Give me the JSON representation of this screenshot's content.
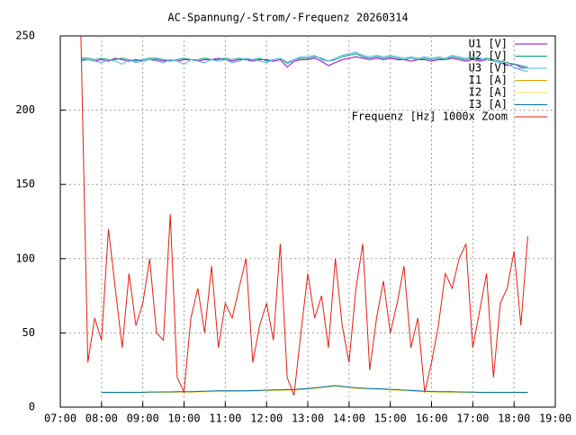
{
  "chart_data": {
    "type": "line",
    "title": "AC-Spannung/-Strom/-Frequenz 20260314",
    "x": [
      "07:30",
      "07:40",
      "07:50",
      "08:00",
      "08:10",
      "08:20",
      "08:30",
      "08:40",
      "08:50",
      "09:00",
      "09:10",
      "09:20",
      "09:30",
      "09:40",
      "09:50",
      "10:00",
      "10:10",
      "10:20",
      "10:30",
      "10:40",
      "10:50",
      "11:00",
      "11:10",
      "11:20",
      "11:30",
      "11:40",
      "11:50",
      "12:00",
      "12:10",
      "12:20",
      "12:30",
      "12:40",
      "12:50",
      "13:00",
      "13:10",
      "13:20",
      "13:30",
      "13:40",
      "13:50",
      "14:00",
      "14:10",
      "14:20",
      "14:30",
      "14:40",
      "14:50",
      "15:00",
      "15:10",
      "15:20",
      "15:30",
      "15:40",
      "15:50",
      "16:00",
      "16:10",
      "16:20",
      "16:30",
      "16:40",
      "16:50",
      "17:00",
      "17:10",
      "17:20",
      "17:30",
      "17:40",
      "17:50",
      "18:00",
      "18:10",
      "18:20"
    ],
    "series": [
      {
        "name": "U1 [V]",
        "color": "#9400d3",
        "values": [
          234,
          234,
          233,
          234,
          233,
          235,
          234,
          233,
          234,
          233,
          234,
          234,
          233,
          234,
          233,
          234,
          234,
          233,
          234,
          234,
          235,
          234,
          233,
          234,
          234,
          233,
          234,
          234,
          233,
          234,
          229,
          233,
          234,
          234,
          235,
          233,
          230,
          232,
          234,
          235,
          236,
          235,
          234,
          235,
          234,
          235,
          234,
          234,
          233,
          234,
          234,
          233,
          234,
          234,
          235,
          234,
          233,
          234,
          233,
          234,
          233,
          232,
          230,
          231,
          229,
          228
        ]
      },
      {
        "name": "U2 [V]",
        "color": "#009e73",
        "values": [
          235,
          235,
          234,
          235,
          234,
          234,
          235,
          234,
          233,
          234,
          235,
          235,
          234,
          233,
          234,
          235,
          234,
          234,
          235,
          234,
          234,
          235,
          234,
          235,
          234,
          234,
          235,
          233,
          234,
          235,
          232,
          234,
          235,
          235,
          236,
          235,
          233,
          234,
          236,
          237,
          238,
          236,
          235,
          236,
          235,
          236,
          235,
          234,
          235,
          234,
          235,
          234,
          235,
          234,
          236,
          235,
          234,
          235,
          234,
          235,
          234,
          233,
          232,
          231,
          230,
          229
        ]
      },
      {
        "name": "U3 [V]",
        "color": "#56b4e9",
        "values": [
          233,
          234,
          233,
          232,
          234,
          233,
          231,
          234,
          232,
          233,
          234,
          233,
          232,
          234,
          233,
          231,
          234,
          233,
          232,
          234,
          233,
          234,
          232,
          233,
          235,
          234,
          233,
          232,
          234,
          235,
          231,
          234,
          236,
          236,
          237,
          234,
          233,
          235,
          237,
          238,
          239,
          237,
          236,
          237,
          236,
          237,
          236,
          235,
          236,
          235,
          236,
          235,
          236,
          235,
          237,
          236,
          235,
          236,
          235,
          234,
          233,
          232,
          231,
          229,
          227,
          226
        ]
      },
      {
        "name": "I1 [A]",
        "color": "#e69f00",
        "values": [
          null,
          null,
          null,
          9.8,
          9.7,
          9.8,
          9.7,
          9.8,
          9.8,
          9.7,
          9.9,
          9.9,
          10,
          10,
          10.1,
          10.2,
          10.2,
          10.3,
          10.5,
          10.6,
          10.7,
          10.7,
          10.7,
          10.7,
          10.7,
          10.9,
          11,
          11.2,
          11.3,
          11.4,
          11.5,
          11.7,
          11.9,
          12.2,
          12.7,
          13.2,
          13.7,
          14.2,
          13.7,
          13.2,
          12.7,
          12.5,
          12.3,
          12.2,
          12,
          11.7,
          11.5,
          11.2,
          11,
          10.7,
          10.5,
          10.3,
          10.2,
          10.2,
          10.1,
          10,
          9.9,
          9.8,
          9.7,
          9.7,
          9.7,
          9.7,
          9.7,
          9.7,
          9.7,
          9.7
        ]
      },
      {
        "name": "I2 [A]",
        "color": "#f0e442",
        "values": [
          null,
          null,
          null,
          9.6,
          9.5,
          9.6,
          9.5,
          9.6,
          9.5,
          9.6,
          9.7,
          9.7,
          9.8,
          9.8,
          9.9,
          10,
          10,
          10.1,
          10.3,
          10.4,
          10.5,
          10.5,
          10.5,
          10.5,
          10.6,
          10.7,
          10.8,
          11,
          11.1,
          11.2,
          11.3,
          11.5,
          11.7,
          12,
          12.5,
          13,
          13.5,
          14,
          13.5,
          13,
          12.5,
          12.3,
          12.1,
          12,
          11.8,
          11.5,
          11.3,
          11,
          10.8,
          10.5,
          10.3,
          10.1,
          10,
          10,
          9.9,
          9.8,
          9.7,
          9.6,
          9.5,
          9.5,
          9.5,
          9.5,
          9.5,
          9.5,
          9.5,
          9.5
        ]
      },
      {
        "name": "I3 [A]",
        "color": "#0072b2",
        "values": [
          null,
          null,
          null,
          10,
          10,
          10,
          10,
          10,
          10,
          10,
          10.2,
          10.2,
          10.3,
          10.3,
          10.4,
          10.5,
          10.5,
          10.6,
          10.8,
          10.9,
          11,
          11,
          11,
          11,
          11,
          11.2,
          11.3,
          11.5,
          11.6,
          11.7,
          11.8,
          12,
          12.2,
          12.5,
          13,
          13.5,
          14,
          14.5,
          14,
          13.5,
          13,
          12.8,
          12.6,
          12.5,
          12.3,
          12,
          11.8,
          11.5,
          11.3,
          11,
          10.8,
          10.6,
          10.5,
          10.5,
          10.4,
          10.3,
          10.2,
          10.1,
          10,
          10,
          10,
          10,
          10,
          10,
          10,
          10
        ]
      },
      {
        "name": "Frequenz [Hz] 1000x Zoom",
        "color": "#e51e10",
        "values": [
          250,
          30,
          60,
          45,
          120,
          80,
          40,
          90,
          55,
          70,
          100,
          50,
          45,
          130,
          20,
          10,
          60,
          80,
          50,
          95,
          40,
          70,
          60,
          80,
          100,
          30,
          55,
          70,
          45,
          110,
          20,
          8,
          50,
          90,
          60,
          75,
          40,
          100,
          55,
          30,
          80,
          110,
          25,
          60,
          85,
          50,
          70,
          95,
          40,
          60,
          10,
          30,
          55,
          90,
          80,
          100,
          110,
          40,
          65,
          90,
          20,
          70,
          80,
          105,
          55,
          115
        ]
      }
    ],
    "xlim": [
      "07:00",
      "19:00"
    ],
    "xticks": [
      "07:00",
      "08:00",
      "09:00",
      "10:00",
      "11:00",
      "12:00",
      "13:00",
      "14:00",
      "15:00",
      "16:00",
      "17:00",
      "18:00",
      "19:00"
    ],
    "ylim": [
      0,
      250
    ],
    "yticks": [
      0,
      50,
      100,
      150,
      200,
      250
    ],
    "grid": true
  }
}
